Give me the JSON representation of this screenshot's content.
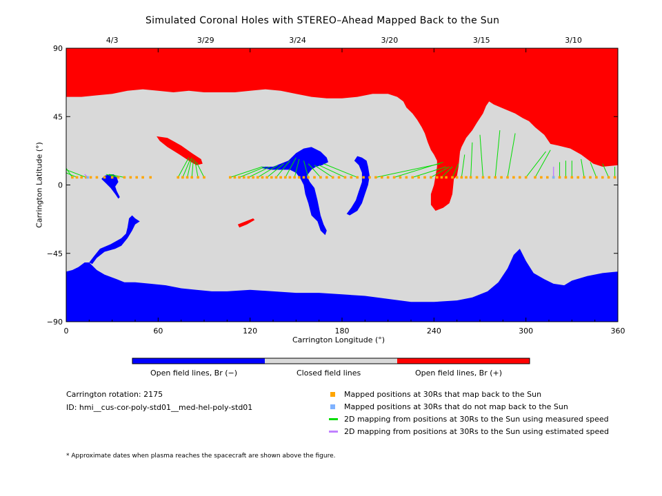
{
  "chart_data": {
    "type": "map",
    "title": "Simulated Coronal Holes with STEREO–Ahead Mapped Back to the Sun",
    "xlabel": "Carrington Longitude (°)",
    "ylabel": "Carrington Latitude (°)",
    "xlim": [
      0,
      360
    ],
    "ylim": [
      -90,
      90
    ],
    "x_ticks": [
      "0",
      "60",
      "120",
      "180",
      "240",
      "300",
      "360"
    ],
    "y_ticks": [
      "90",
      "45",
      "0",
      "−45",
      "−90"
    ],
    "top_date_ticks": [
      {
        "label": "4/3",
        "lon": 30
      },
      {
        "label": "3/29",
        "lon": 91
      },
      {
        "label": "3/24",
        "lon": 151
      },
      {
        "label": "3/20",
        "lon": 211
      },
      {
        "label": "3/15",
        "lon": 271
      },
      {
        "label": "3/10",
        "lon": 331
      }
    ],
    "colorbar": [
      {
        "label": "Open field lines, Br (−)",
        "color": "#0000ff"
      },
      {
        "label": "Closed field lines",
        "color": "#d9d9d9"
      },
      {
        "label": "Open field lines, Br (+)",
        "color": "#ff0000"
      }
    ],
    "regions": {
      "north_polar_positive": [
        [
          0,
          90
        ],
        [
          360,
          90
        ],
        [
          360,
          13
        ],
        [
          350,
          12
        ],
        [
          344,
          14
        ],
        [
          336,
          20
        ],
        [
          329,
          24
        ],
        [
          321,
          26
        ],
        [
          316,
          27
        ],
        [
          312,
          33
        ],
        [
          306,
          38
        ],
        [
          302,
          42
        ],
        [
          298,
          44
        ],
        [
          293,
          47
        ],
        [
          286,
          50
        ],
        [
          279,
          53
        ],
        [
          276,
          55
        ],
        [
          274,
          52
        ],
        [
          272,
          47
        ],
        [
          268,
          41
        ],
        [
          265,
          36
        ],
        [
          261,
          31
        ],
        [
          258,
          25
        ],
        [
          257,
          22
        ],
        [
          256,
          12
        ],
        [
          255,
          6
        ],
        [
          253,
          4
        ],
        [
          252,
          -6
        ],
        [
          250,
          -12
        ],
        [
          246,
          -15
        ],
        [
          241,
          -17
        ],
        [
          238,
          -13
        ],
        [
          238,
          -6
        ],
        [
          240,
          0
        ],
        [
          241,
          6
        ],
        [
          242,
          12
        ],
        [
          242,
          16
        ],
        [
          240,
          20
        ],
        [
          238,
          23
        ],
        [
          236,
          28
        ],
        [
          234,
          34
        ],
        [
          232,
          38
        ],
        [
          229,
          43
        ],
        [
          226,
          47
        ],
        [
          222,
          51
        ],
        [
          220,
          55
        ],
        [
          216,
          58
        ],
        [
          210,
          60
        ],
        [
          200,
          60
        ],
        [
          190,
          58
        ],
        [
          180,
          57
        ],
        [
          170,
          57
        ],
        [
          160,
          58
        ],
        [
          150,
          60
        ],
        [
          140,
          62
        ],
        [
          130,
          63
        ],
        [
          120,
          62
        ],
        [
          110,
          61
        ],
        [
          100,
          61
        ],
        [
          90,
          61
        ],
        [
          80,
          62
        ],
        [
          70,
          61
        ],
        [
          60,
          62
        ],
        [
          50,
          63
        ],
        [
          40,
          62
        ],
        [
          30,
          60
        ],
        [
          20,
          59
        ],
        [
          10,
          58
        ],
        [
          0,
          58
        ]
      ],
      "south_polar_negative": [
        [
          0,
          -90
        ],
        [
          360,
          -90
        ],
        [
          360,
          -57
        ],
        [
          350,
          -58
        ],
        [
          340,
          -60
        ],
        [
          330,
          -63
        ],
        [
          325,
          -66
        ],
        [
          318,
          -65
        ],
        [
          312,
          -62
        ],
        [
          305,
          -58
        ],
        [
          300,
          -50
        ],
        [
          296,
          -42
        ],
        [
          292,
          -46
        ],
        [
          288,
          -55
        ],
        [
          282,
          -64
        ],
        [
          275,
          -70
        ],
        [
          265,
          -74
        ],
        [
          255,
          -76
        ],
        [
          240,
          -77
        ],
        [
          225,
          -77
        ],
        [
          210,
          -75
        ],
        [
          195,
          -73
        ],
        [
          180,
          -72
        ],
        [
          165,
          -71
        ],
        [
          150,
          -71
        ],
        [
          135,
          -70
        ],
        [
          120,
          -69
        ],
        [
          105,
          -70
        ],
        [
          95,
          -70
        ],
        [
          85,
          -69
        ],
        [
          75,
          -68
        ],
        [
          65,
          -66
        ],
        [
          55,
          -65
        ],
        [
          45,
          -64
        ],
        [
          38,
          -64
        ],
        [
          33,
          -62
        ],
        [
          25,
          -59
        ],
        [
          20,
          -56
        ],
        [
          15,
          -51
        ],
        [
          12,
          -51
        ],
        [
          8,
          -54
        ],
        [
          4,
          -56
        ],
        [
          0,
          -57
        ]
      ],
      "negative_arm_south": [
        [
          15,
          -51
        ],
        [
          18,
          -47
        ],
        [
          22,
          -42
        ],
        [
          29,
          -39
        ],
        [
          36,
          -35
        ],
        [
          39,
          -32
        ],
        [
          40,
          -28
        ],
        [
          41,
          -22
        ],
        [
          43,
          -20
        ],
        [
          45,
          -22
        ],
        [
          48,
          -24
        ],
        [
          45,
          -26
        ],
        [
          43,
          -30
        ],
        [
          40,
          -35
        ],
        [
          36,
          -40
        ],
        [
          32,
          -42
        ],
        [
          25,
          -44
        ],
        [
          20,
          -48
        ],
        [
          17,
          -52
        ]
      ],
      "negative_small_left": [
        [
          23,
          4
        ],
        [
          25,
          6
        ],
        [
          28,
          7
        ],
        [
          31,
          7
        ],
        [
          33,
          5
        ],
        [
          34,
          2
        ],
        [
          32,
          -1
        ],
        [
          33,
          -4
        ],
        [
          35,
          -8
        ],
        [
          34,
          -9
        ],
        [
          32,
          -6
        ],
        [
          29,
          -2
        ],
        [
          26,
          1
        ]
      ],
      "negative_center": [
        [
          128,
          12
        ],
        [
          135,
          12
        ],
        [
          140,
          14
        ],
        [
          145,
          16
        ],
        [
          150,
          21
        ],
        [
          155,
          24
        ],
        [
          160,
          25
        ],
        [
          166,
          22
        ],
        [
          170,
          18
        ],
        [
          171,
          15
        ],
        [
          167,
          13
        ],
        [
          163,
          12
        ],
        [
          160,
          10
        ],
        [
          157,
          6
        ],
        [
          159,
          2
        ],
        [
          162,
          -2
        ],
        [
          164,
          -10
        ],
        [
          166,
          -20
        ],
        [
          168,
          -26
        ],
        [
          170,
          -30
        ],
        [
          169,
          -33
        ],
        [
          166,
          -30
        ],
        [
          164,
          -24
        ],
        [
          160,
          -20
        ],
        [
          158,
          -12
        ],
        [
          156,
          -6
        ],
        [
          155,
          0
        ],
        [
          153,
          4
        ],
        [
          150,
          8
        ],
        [
          146,
          10
        ],
        [
          140,
          10
        ],
        [
          134,
          10
        ],
        [
          128,
          11
        ]
      ],
      "negative_arc": [
        [
          188,
          16
        ],
        [
          190,
          19
        ],
        [
          193,
          18
        ],
        [
          196,
          16
        ],
        [
          197,
          12
        ],
        [
          198,
          6
        ],
        [
          197,
          0
        ],
        [
          195,
          -6
        ],
        [
          193,
          -12
        ],
        [
          190,
          -17
        ],
        [
          185,
          -20
        ],
        [
          183,
          -19
        ],
        [
          186,
          -15
        ],
        [
          189,
          -10
        ],
        [
          191,
          -4
        ],
        [
          193,
          2
        ],
        [
          193,
          8
        ],
        [
          191,
          13
        ]
      ],
      "positive_left_streak": [
        [
          59,
          32
        ],
        [
          66,
          31
        ],
        [
          75,
          26
        ],
        [
          82,
          21
        ],
        [
          88,
          17
        ],
        [
          89,
          14
        ],
        [
          85,
          13
        ],
        [
          80,
          16
        ],
        [
          74,
          20
        ],
        [
          66,
          25
        ],
        [
          61,
          29
        ]
      ],
      "positive_small_south": [
        [
          112,
          -26
        ],
        [
          117,
          -24
        ],
        [
          122,
          -22
        ],
        [
          123,
          -23
        ],
        [
          118,
          -26
        ],
        [
          113,
          -28
        ]
      ],
      "positive_hole_island": [
        [
          276,
          51
        ],
        [
          280,
          51
        ],
        [
          283,
          49
        ],
        [
          281,
          46
        ],
        [
          277,
          46
        ],
        [
          275,
          48
        ]
      ]
    },
    "mapped_points_lat": 5,
    "mapped_points_lon": [
      4,
      7,
      10,
      13,
      16,
      20,
      25,
      30,
      34,
      38,
      42,
      46,
      50,
      55,
      73,
      76,
      79,
      82,
      86,
      90,
      107,
      110,
      113,
      116,
      119,
      122,
      125,
      128,
      131,
      134,
      137,
      140,
      143,
      146,
      149,
      152,
      155,
      158,
      162,
      166,
      170,
      174,
      178,
      182,
      186,
      190,
      194,
      198,
      202,
      206,
      210,
      214,
      218,
      222,
      226,
      230,
      234,
      238,
      242,
      245,
      248,
      252,
      255,
      258,
      261,
      264,
      268,
      272,
      276,
      280,
      284,
      288,
      292,
      296,
      300,
      306,
      310,
      314,
      318,
      322,
      326,
      330,
      334,
      338,
      342,
      346,
      350,
      354,
      358
    ],
    "unmapped_points_lon": [
      14,
      318
    ],
    "mapping_lines_measured": [
      [
        [
          0,
          11
        ],
        [
          4,
          5
        ]
      ],
      [
        [
          0,
          8
        ],
        [
          7,
          5
        ]
      ],
      [
        [
          0,
          10
        ],
        [
          13,
          5
        ]
      ],
      [
        [
          26,
          7
        ],
        [
          34,
          5
        ]
      ],
      [
        [
          28,
          7
        ],
        [
          38,
          5
        ]
      ],
      [
        [
          30,
          7
        ],
        [
          30,
          5
        ]
      ],
      [
        [
          80,
          18
        ],
        [
          73,
          5
        ]
      ],
      [
        [
          81,
          17
        ],
        [
          76,
          5
        ]
      ],
      [
        [
          82,
          18
        ],
        [
          79,
          5
        ]
      ],
      [
        [
          83,
          17
        ],
        [
          82,
          5
        ]
      ],
      [
        [
          84,
          16
        ],
        [
          86,
          5
        ]
      ],
      [
        [
          85,
          15
        ],
        [
          90,
          5
        ]
      ],
      [
        [
          128,
          12
        ],
        [
          107,
          5
        ]
      ],
      [
        [
          130,
          12
        ],
        [
          113,
          5
        ]
      ],
      [
        [
          133,
          12
        ],
        [
          119,
          5
        ]
      ],
      [
        [
          138,
          13
        ],
        [
          125,
          5
        ]
      ],
      [
        [
          142,
          14
        ],
        [
          131,
          5
        ]
      ],
      [
        [
          146,
          16
        ],
        [
          137,
          5
        ]
      ],
      [
        [
          150,
          18
        ],
        [
          143,
          5
        ]
      ],
      [
        [
          152,
          17
        ],
        [
          149,
          5
        ]
      ],
      [
        [
          155,
          16
        ],
        [
          158,
          5
        ]
      ],
      [
        [
          158,
          14
        ],
        [
          166,
          5
        ]
      ],
      [
        [
          162,
          13
        ],
        [
          174,
          5
        ]
      ],
      [
        [
          165,
          13
        ],
        [
          182,
          5
        ]
      ],
      [
        [
          168,
          14
        ],
        [
          190,
          5
        ]
      ],
      [
        [
          244,
          14
        ],
        [
          202,
          5
        ]
      ],
      [
        [
          246,
          15
        ],
        [
          214,
          5
        ]
      ],
      [
        [
          248,
          12
        ],
        [
          226,
          5
        ]
      ],
      [
        [
          250,
          12
        ],
        [
          238,
          5
        ]
      ],
      [
        [
          252,
          12
        ],
        [
          245,
          5
        ]
      ],
      [
        [
          256,
          14
        ],
        [
          252,
          5
        ]
      ],
      [
        [
          260,
          20
        ],
        [
          258,
          5
        ]
      ],
      [
        [
          265,
          28
        ],
        [
          264,
          5
        ]
      ],
      [
        [
          270,
          33
        ],
        [
          272,
          5
        ]
      ],
      [
        [
          283,
          36
        ],
        [
          280,
          5
        ]
      ],
      [
        [
          293,
          34
        ],
        [
          288,
          5
        ]
      ],
      [
        [
          313,
          22
        ],
        [
          300,
          5
        ]
      ],
      [
        [
          316,
          23
        ],
        [
          306,
          5
        ]
      ],
      [
        [
          322,
          15
        ],
        [
          322,
          5
        ]
      ],
      [
        [
          326,
          16
        ],
        [
          326,
          5
        ]
      ],
      [
        [
          330,
          16
        ],
        [
          330,
          5
        ]
      ],
      [
        [
          336,
          17
        ],
        [
          338,
          5
        ]
      ],
      [
        [
          342,
          15
        ],
        [
          346,
          5
        ]
      ],
      [
        [
          350,
          14
        ],
        [
          354,
          5
        ]
      ],
      [
        [
          358,
          12
        ],
        [
          358,
          5
        ]
      ]
    ],
    "mapping_lines_estimated": [
      [
        [
          12,
          7
        ],
        [
          14,
          5
        ]
      ],
      [
        [
          318,
          12
        ],
        [
          318,
          5
        ]
      ]
    ],
    "legend": [
      {
        "label": "Mapped positions at 30Rs that map back to the Sun",
        "color": "#ffa500",
        "kind": "square"
      },
      {
        "label": "Mapped positions at 30Rs that do not map back to the Sun",
        "color": "#7fb2ff",
        "kind": "square"
      },
      {
        "label": "2D mapping from positions at 30Rs to the Sun using measured speed",
        "color": "#00dd00",
        "kind": "line"
      },
      {
        "label": "2D mapping from positions at 30Rs to the Sun using estimated speed",
        "color": "#c080ff",
        "kind": "line"
      }
    ]
  },
  "info": {
    "rotation": "Carrington rotation: 2175",
    "id": "ID: hmi__cus-cor-poly-std01__med-hel-poly-std01"
  },
  "footnote": "* Approximate dates when plasma reaches the spacecraft are shown above the figure."
}
